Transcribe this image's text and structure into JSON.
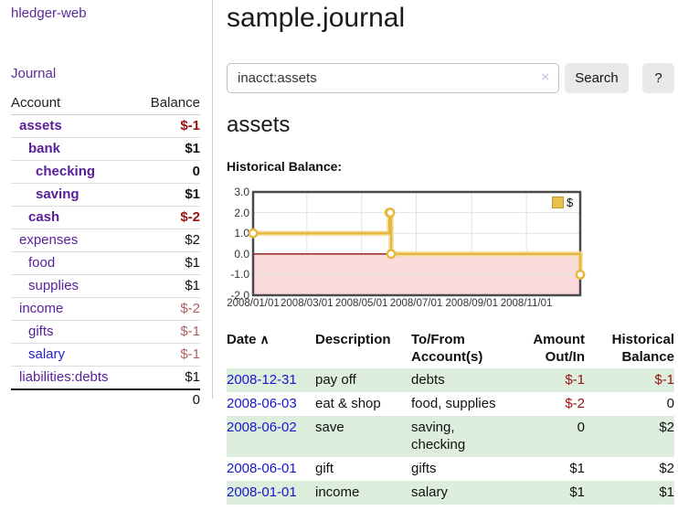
{
  "app": {
    "brand": "hledger-web"
  },
  "nav": {
    "journal": "Journal"
  },
  "sidebar": {
    "headers": {
      "account": "Account",
      "balance": "Balance"
    },
    "accounts": [
      {
        "name": "assets",
        "balance": "$-1"
      },
      {
        "name": "bank",
        "balance": "$1"
      },
      {
        "name": "checking",
        "balance": "0"
      },
      {
        "name": "saving",
        "balance": "$1"
      },
      {
        "name": "cash",
        "balance": "$-2"
      },
      {
        "name": "expenses",
        "balance": "$2"
      },
      {
        "name": "food",
        "balance": "$1"
      },
      {
        "name": "supplies",
        "balance": "$1"
      },
      {
        "name": "income",
        "balance": "$-2"
      },
      {
        "name": "gifts",
        "balance": "$-1"
      },
      {
        "name": "salary",
        "balance": "$-1"
      },
      {
        "name": "liabilities:debts",
        "balance": "$1"
      }
    ],
    "total": "0"
  },
  "header": {
    "title": "sample.journal"
  },
  "search": {
    "value": "inacct:assets",
    "clear_icon": "×",
    "button_label": "Search",
    "help_label": "?"
  },
  "account_page": {
    "heading": "assets",
    "chart_label": "Historical Balance:"
  },
  "chart_data": {
    "type": "line",
    "title": "Historical Balance:",
    "step": true,
    "xrange": [
      "2008-01-01",
      "2008-12-31"
    ],
    "ylim": [
      -2,
      3
    ],
    "yticks": [
      "3.0",
      "2.0",
      "1.0",
      "0.0",
      "-1.0",
      "-2.0"
    ],
    "xticks": [
      "2008/01/01",
      "2008/03/01",
      "2008/05/01",
      "2008/07/01",
      "2008/09/01",
      "2008/11/01"
    ],
    "legend": "$",
    "legend_position": "top-right",
    "grid": true,
    "series": [
      {
        "name": "$",
        "x": [
          "2008-01-01",
          "2008-06-01",
          "2008-06-02",
          "2008-06-03",
          "2008-12-31"
        ],
        "y": [
          1,
          2,
          2,
          0,
          -1
        ]
      }
    ],
    "colors": {
      "line": "#e6b73e",
      "line_halo": "#f3dfa2",
      "marker_fill": "#ffffff",
      "negative_fill": "#fbdada",
      "zero_line": "#8e1212",
      "border": "#4a4a4a",
      "grid_line": "#e2e2e2"
    }
  },
  "register": {
    "headers": {
      "date": "Date",
      "sort_icon": "∧",
      "description": "Description",
      "accounts": "To/From Account(s)",
      "amount": "Amount Out/In",
      "balance": "Historical Balance"
    },
    "rows": [
      {
        "date": "2008-12-31",
        "description": "pay off",
        "accounts": "debts",
        "amount": "$-1",
        "balance": "$-1"
      },
      {
        "date": "2008-06-03",
        "description": "eat & shop",
        "accounts": "food, supplies",
        "amount": "$-2",
        "balance": "0"
      },
      {
        "date": "2008-06-02",
        "description": "save",
        "accounts": "saving, checking",
        "amount": "0",
        "balance": "$2"
      },
      {
        "date": "2008-06-01",
        "description": "gift",
        "accounts": "gifts",
        "amount": "$1",
        "balance": "$2"
      },
      {
        "date": "2008-01-01",
        "description": "income",
        "accounts": "salary",
        "amount": "$1",
        "balance": "$1"
      }
    ]
  },
  "colors": {
    "accent_purple": "#5a2b9a",
    "link_blue": "#1717cd",
    "negative_strong": "#991111",
    "negative_soft": "#b06060",
    "row_stripe_green": "#ddeedd"
  }
}
